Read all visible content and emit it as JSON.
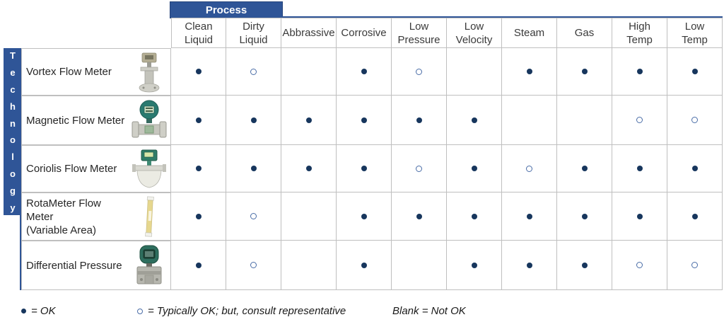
{
  "header": {
    "process_label": "Process",
    "columns": [
      {
        "lines": [
          "Clean",
          "Liquid"
        ]
      },
      {
        "lines": [
          "Dirty",
          "Liquid"
        ]
      },
      {
        "lines": [
          "Abbrassive"
        ]
      },
      {
        "lines": [
          "Corrosive"
        ]
      },
      {
        "lines": [
          "Low",
          "Pressure"
        ]
      },
      {
        "lines": [
          "Low",
          "Velocity"
        ]
      },
      {
        "lines": [
          "Steam"
        ]
      },
      {
        "lines": [
          "Gas"
        ]
      },
      {
        "lines": [
          "High",
          "Temp"
        ]
      },
      {
        "lines": [
          "Low",
          "Temp"
        ]
      }
    ]
  },
  "technology_label": "Technology",
  "rows": [
    {
      "label_lines": [
        "Vortex Flow Meter"
      ],
      "icon": "vortex-flow-meter-image",
      "values": [
        "ok",
        "consult",
        "",
        "ok",
        "consult",
        "",
        "ok",
        "ok",
        "ok",
        "ok"
      ]
    },
    {
      "label_lines": [
        "Magnetic Flow Meter"
      ],
      "icon": "magnetic-flow-meter-image",
      "values": [
        "ok",
        "ok",
        "ok",
        "ok",
        "ok",
        "ok",
        "",
        "",
        "consult",
        "consult"
      ]
    },
    {
      "label_lines": [
        "Coriolis Flow Meter"
      ],
      "icon": "coriolis-flow-meter-image",
      "values": [
        "ok",
        "ok",
        "ok",
        "ok",
        "consult",
        "ok",
        "consult",
        "ok",
        "ok",
        "ok"
      ]
    },
    {
      "label_lines": [
        "RotaMeter Flow Meter",
        "(Variable Area)"
      ],
      "icon": "rotameter-flow-meter-image",
      "values": [
        "ok",
        "consult",
        "",
        "ok",
        "ok",
        "ok",
        "ok",
        "ok",
        "ok",
        "ok"
      ]
    },
    {
      "label_lines": [
        "Differential Pressure"
      ],
      "icon": "differential-pressure-image",
      "values": [
        "ok",
        "consult",
        "",
        "ok",
        "",
        "ok",
        "ok",
        "ok",
        "consult",
        "consult"
      ]
    }
  ],
  "legend": [
    {
      "symbol": "filled-dot",
      "text": "= OK"
    },
    {
      "symbol": "open-circle",
      "text": "= Typically OK; but, consult representative"
    },
    {
      "symbol": "none",
      "text": "Blank = Not OK"
    }
  ],
  "colors": {
    "accent_blue": "#2f5597",
    "dot_navy": "#17365d",
    "circle_blue": "#4a6da7",
    "grid_border": "#bfbfbf"
  }
}
